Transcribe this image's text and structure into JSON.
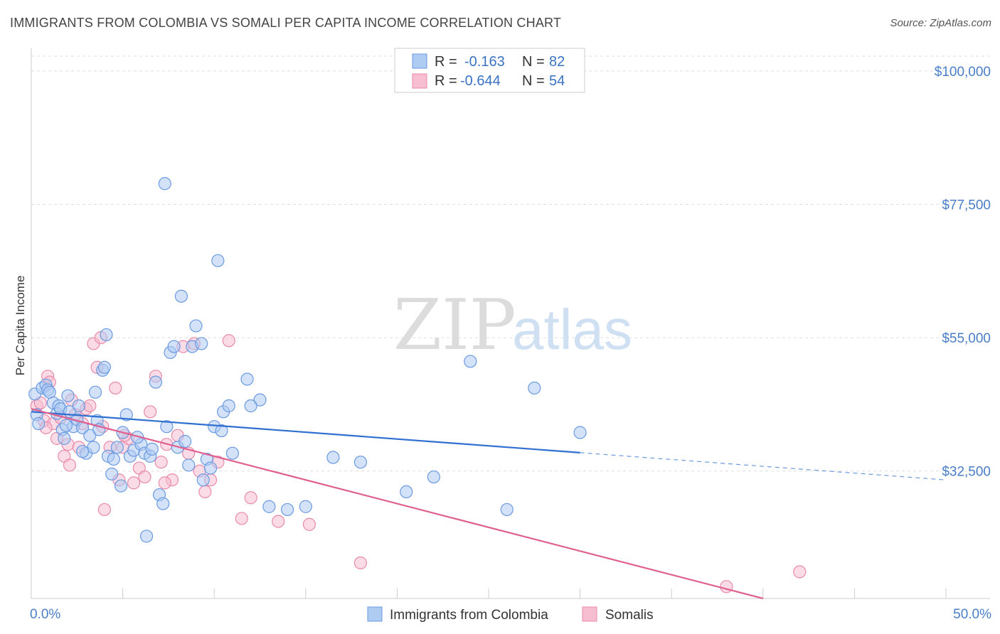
{
  "title": "IMMIGRANTS FROM COLOMBIA VS SOMALI PER CAPITA INCOME CORRELATION CHART",
  "source": "Source: ZipAtlas.com",
  "watermark": {
    "zip": "ZIP",
    "atlas": "atlas"
  },
  "colors": {
    "colombia_fill": "#aecbf2",
    "colombia_stroke": "#6a9ae0",
    "colombia_line": "#2f6fcf",
    "somali_fill": "#f7bdd0",
    "somali_stroke": "#e88aab",
    "somali_line": "#e0608f",
    "tick_label": "#4a7ec7",
    "grid": "#dddddd"
  },
  "legend": {
    "r_label": "R =",
    "n_label": "N =",
    "entries": [
      {
        "r": "-0.163",
        "n": "82"
      },
      {
        "r": "-0.644",
        "n": "54"
      }
    ]
  },
  "chart_data": {
    "type": "scatter",
    "title": "IMMIGRANTS FROM COLOMBIA VS SOMALI PER CAPITA INCOME CORRELATION CHART",
    "xlabel": "",
    "ylabel": "Per Capita Income",
    "xlim": [
      0,
      50
    ],
    "ylim": [
      11000,
      102500
    ],
    "x_tick_labels": [
      "0.0%",
      "50.0%"
    ],
    "y_ticks": [
      32500,
      55000,
      77500,
      100000
    ],
    "y_tick_labels": [
      "$32,500",
      "$55,000",
      "$77,500",
      "$100,000"
    ],
    "grid": true,
    "legend_position": "top-center",
    "series": [
      {
        "name": "Immigrants from Colombia",
        "r": -0.163,
        "n": 82,
        "trend": {
          "x0": 0,
          "y0": 42500,
          "x1": 30,
          "y1": 35600,
          "dashed_to_x": 50,
          "dashed_to_y": 31000
        },
        "points": [
          [
            0.2,
            45500
          ],
          [
            0.3,
            42000
          ],
          [
            0.4,
            40500
          ],
          [
            0.6,
            46500
          ],
          [
            0.8,
            47000
          ],
          [
            0.9,
            46200
          ],
          [
            1.0,
            45800
          ],
          [
            1.2,
            44000
          ],
          [
            1.4,
            42200
          ],
          [
            1.5,
            43500
          ],
          [
            1.6,
            43000
          ],
          [
            1.7,
            39500
          ],
          [
            1.8,
            38000
          ],
          [
            2.0,
            45200
          ],
          [
            2.1,
            42500
          ],
          [
            2.3,
            40000
          ],
          [
            2.5,
            41200
          ],
          [
            2.6,
            43500
          ],
          [
            2.8,
            39800
          ],
          [
            3.0,
            35500
          ],
          [
            3.2,
            38500
          ],
          [
            3.4,
            36500
          ],
          [
            3.6,
            41000
          ],
          [
            3.7,
            39500
          ],
          [
            3.9,
            49500
          ],
          [
            4.1,
            55500
          ],
          [
            4.2,
            35000
          ],
          [
            4.4,
            32000
          ],
          [
            4.5,
            34500
          ],
          [
            4.7,
            36500
          ],
          [
            4.9,
            30000
          ],
          [
            5.0,
            39000
          ],
          [
            5.2,
            42000
          ],
          [
            5.4,
            35000
          ],
          [
            5.6,
            36000
          ],
          [
            6.0,
            37000
          ],
          [
            6.2,
            35500
          ],
          [
            6.5,
            35000
          ],
          [
            6.8,
            47500
          ],
          [
            7.0,
            28500
          ],
          [
            7.2,
            27000
          ],
          [
            7.4,
            40000
          ],
          [
            7.6,
            52500
          ],
          [
            7.8,
            53500
          ],
          [
            8.0,
            36500
          ],
          [
            8.2,
            62000
          ],
          [
            8.4,
            37500
          ],
          [
            8.8,
            53500
          ],
          [
            9.0,
            57000
          ],
          [
            9.3,
            54000
          ],
          [
            9.6,
            34500
          ],
          [
            10.0,
            40000
          ],
          [
            10.2,
            68000
          ],
          [
            10.5,
            42500
          ],
          [
            10.8,
            43500
          ],
          [
            11.0,
            35500
          ],
          [
            11.8,
            48000
          ],
          [
            12.5,
            44500
          ],
          [
            13.0,
            26500
          ],
          [
            14.0,
            26000
          ],
          [
            15.0,
            26500
          ],
          [
            16.5,
            34800
          ],
          [
            18.0,
            34000
          ],
          [
            20.5,
            29000
          ],
          [
            22.0,
            31500
          ],
          [
            24.0,
            51000
          ],
          [
            26.0,
            26000
          ],
          [
            27.5,
            46500
          ],
          [
            30.0,
            39000
          ],
          [
            7.3,
            81000
          ],
          [
            8.6,
            33500
          ],
          [
            9.4,
            31000
          ],
          [
            9.8,
            33000
          ],
          [
            4.0,
            50000
          ],
          [
            6.3,
            21500
          ],
          [
            2.8,
            35800
          ],
          [
            1.9,
            40200
          ],
          [
            3.5,
            45800
          ],
          [
            5.8,
            38200
          ],
          [
            10.4,
            39300
          ],
          [
            12.0,
            43500
          ],
          [
            6.6,
            36200
          ]
        ]
      },
      {
        "name": "Somalis",
        "r": -0.644,
        "n": 54,
        "trend": {
          "x0": 0,
          "y0": 43000,
          "x1": 40,
          "y1": 11000
        },
        "points": [
          [
            0.3,
            43500
          ],
          [
            0.5,
            44000
          ],
          [
            0.7,
            41000
          ],
          [
            0.9,
            48500
          ],
          [
            1.0,
            47500
          ],
          [
            1.2,
            40500
          ],
          [
            1.4,
            38000
          ],
          [
            1.6,
            41500
          ],
          [
            1.8,
            35000
          ],
          [
            2.0,
            37000
          ],
          [
            2.2,
            44500
          ],
          [
            2.4,
            42000
          ],
          [
            2.6,
            36500
          ],
          [
            2.8,
            40500
          ],
          [
            3.0,
            43000
          ],
          [
            3.2,
            43500
          ],
          [
            3.4,
            54000
          ],
          [
            3.6,
            50000
          ],
          [
            3.8,
            55000
          ],
          [
            4.0,
            26000
          ],
          [
            4.3,
            36500
          ],
          [
            4.6,
            46500
          ],
          [
            4.8,
            31000
          ],
          [
            5.0,
            36500
          ],
          [
            5.3,
            38000
          ],
          [
            5.6,
            30500
          ],
          [
            5.9,
            33000
          ],
          [
            6.2,
            31500
          ],
          [
            6.5,
            42500
          ],
          [
            6.8,
            48500
          ],
          [
            7.1,
            34000
          ],
          [
            7.4,
            37000
          ],
          [
            7.7,
            31000
          ],
          [
            8.0,
            38500
          ],
          [
            8.3,
            53500
          ],
          [
            8.6,
            35500
          ],
          [
            8.9,
            54000
          ],
          [
            9.2,
            32500
          ],
          [
            9.5,
            29000
          ],
          [
            9.8,
            31000
          ],
          [
            10.2,
            34000
          ],
          [
            10.8,
            54500
          ],
          [
            11.5,
            24500
          ],
          [
            12.0,
            28000
          ],
          [
            13.5,
            24000
          ],
          [
            15.2,
            23500
          ],
          [
            18.0,
            17000
          ],
          [
            38.0,
            13000
          ],
          [
            42.0,
            15500
          ],
          [
            0.8,
            39800
          ],
          [
            2.1,
            33500
          ],
          [
            3.9,
            40000
          ],
          [
            5.1,
            38500
          ],
          [
            7.3,
            30500
          ]
        ]
      }
    ]
  },
  "bottom_legend": [
    {
      "label": "Immigrants from Colombia"
    },
    {
      "label": "Somalis"
    }
  ]
}
